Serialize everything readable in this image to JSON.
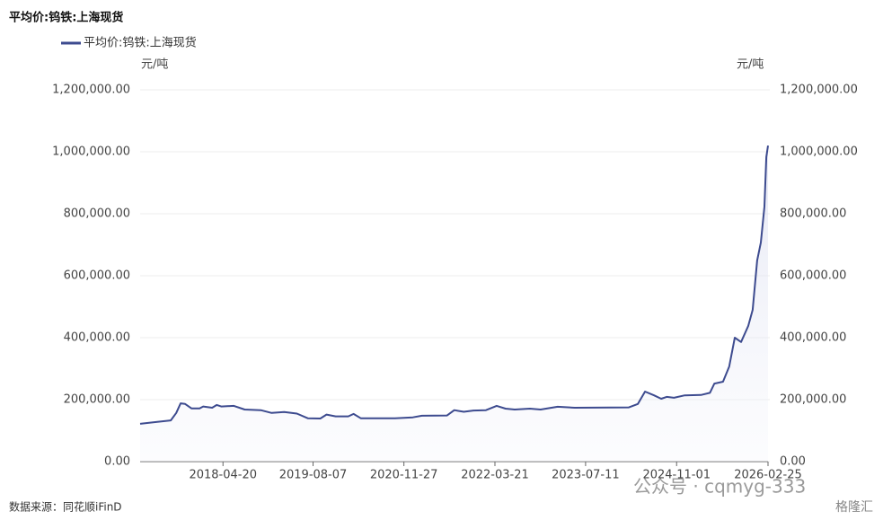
{
  "chart_data": {
    "type": "line",
    "title": "平均价:钨铁:上海现货",
    "y_label": "元/吨",
    "y2_label": "元/吨",
    "x": [
      "2017-02-08",
      "2017-05-09",
      "2017-07-19",
      "2017-08-17",
      "2017-09-09",
      "2017-10-03",
      "2017-11-05",
      "2017-12-18",
      "2018-01-06",
      "2018-02-22",
      "2018-03-18",
      "2018-04-11",
      "2018-06-16",
      "2018-08-12",
      "2018-11-05",
      "2019-01-01",
      "2019-03-08",
      "2019-05-14",
      "2019-07-10",
      "2019-09-14",
      "2019-10-17",
      "2019-12-04",
      "2020-02-08",
      "2020-03-07",
      "2020-04-14",
      "2020-10-11",
      "2021-01-13",
      "2021-03-02",
      "2021-07-12",
      "2021-08-19",
      "2021-10-08",
      "2021-11-28",
      "2022-02-02",
      "2022-03-30",
      "2022-05-16",
      "2022-07-03",
      "2022-09-21",
      "2022-11-16",
      "2023-02-14",
      "2023-05-15",
      "2024-02-24",
      "2024-04-11",
      "2024-05-19",
      "2024-07-05",
      "2024-08-12",
      "2024-09-10",
      "2024-10-18",
      "2024-12-14",
      "2025-03-09",
      "2025-04-25",
      "2025-05-19",
      "2025-07-03",
      "2025-08-05",
      "2025-09-03",
      "2025-10-06",
      "2025-11-13",
      "2025-12-06",
      "2025-12-30",
      "2026-01-18",
      "2026-02-06",
      "2026-02-16",
      "2026-02-25"
    ],
    "series": [
      {
        "name": "平均价:钨铁:上海现货",
        "color": "#3d4b8f",
        "values": [
          122000,
          128000,
          133000,
          157000,
          188000,
          186000,
          172000,
          172000,
          178000,
          174000,
          183000,
          178000,
          180000,
          168000,
          166000,
          157000,
          160000,
          155000,
          140000,
          139000,
          152000,
          146000,
          146000,
          154000,
          140000,
          140000,
          143000,
          148000,
          149000,
          166000,
          161000,
          165000,
          166000,
          180000,
          171000,
          168000,
          171000,
          168000,
          177000,
          174000,
          175000,
          186000,
          226000,
          214000,
          203000,
          209000,
          206000,
          214000,
          215000,
          222000,
          252000,
          258000,
          307000,
          400000,
          386000,
          438000,
          490000,
          649000,
          707000,
          823000,
          983000,
          1020000
        ]
      }
    ],
    "xlim": [
      "2017-02-08",
      "2026-02-25"
    ],
    "xticks": [
      "2018-04-20",
      "2019-08-07",
      "2020-11-27",
      "2022-03-21",
      "2023-07-11",
      "2024-11-01",
      "2026-02-25"
    ],
    "ylim": [
      0,
      1200000
    ],
    "yticks": [
      {
        "value": 0,
        "label": "0.00"
      },
      {
        "value": 200000,
        "label": "200,000.00"
      },
      {
        "value": 400000,
        "label": "400,000.00"
      },
      {
        "value": 600000,
        "label": "600,000.00"
      },
      {
        "value": 800000,
        "label": "800,000.00"
      },
      {
        "value": 1000000,
        "label": "1,000,000.00"
      },
      {
        "value": 1200000,
        "label": "1,200,000.00"
      }
    ],
    "y2lim": [
      0,
      1200000
    ],
    "y2ticks": [
      {
        "value": 0,
        "label": "0.00"
      },
      {
        "value": 200000,
        "label": "200,000.00"
      },
      {
        "value": 400000,
        "label": "400,000.00"
      },
      {
        "value": 600000,
        "label": "600,000.00"
      },
      {
        "value": 800000,
        "label": "800,000.00"
      },
      {
        "value": 1000000,
        "label": "1,000,000.00"
      },
      {
        "value": 1200000,
        "label": "1,200,000.00"
      }
    ],
    "grid": true
  },
  "footer": {
    "source": "数据来源：同花顺iFinD"
  },
  "watermark": {
    "account": "公众号 · cqmyg-333",
    "brand": "格隆汇"
  }
}
